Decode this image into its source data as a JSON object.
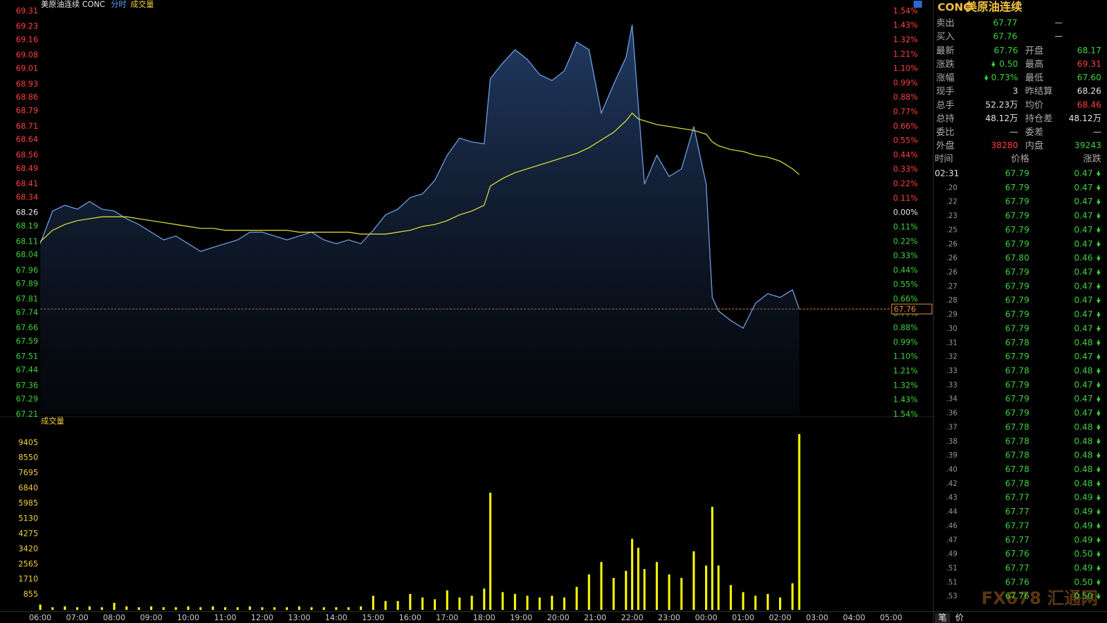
{
  "chart_data": [
    {
      "type": "line",
      "title": "美原油连续 CONC",
      "subtitle": "分时",
      "indicator": "成交量",
      "x": [
        "06:00",
        "06:20",
        "06:40",
        "07:00",
        "07:20",
        "07:40",
        "08:00",
        "08:20",
        "08:40",
        "09:00",
        "09:20",
        "09:40",
        "10:00",
        "10:20",
        "10:40",
        "11:00",
        "11:20",
        "11:40",
        "12:00",
        "12:20",
        "12:40",
        "13:00",
        "13:20",
        "13:40",
        "14:00",
        "14:20",
        "14:40",
        "15:00",
        "15:20",
        "15:40",
        "16:00",
        "16:20",
        "16:40",
        "17:00",
        "17:20",
        "17:40",
        "18:00",
        "18:10",
        "18:30",
        "18:50",
        "19:10",
        "19:30",
        "19:50",
        "20:10",
        "20:30",
        "20:50",
        "21:10",
        "21:30",
        "21:50",
        "22:00",
        "22:10",
        "22:20",
        "22:40",
        "23:00",
        "23:20",
        "23:40",
        "00:00",
        "00:10",
        "00:20",
        "00:40",
        "01:00",
        "01:20",
        "01:40",
        "02:00",
        "02:20",
        "02:31"
      ],
      "series": [
        {
          "color": "#6f9be0",
          "values": [
            68.1,
            68.27,
            68.3,
            68.28,
            68.32,
            68.28,
            68.27,
            68.23,
            68.2,
            68.16,
            68.12,
            68.14,
            68.1,
            68.06,
            68.08,
            68.1,
            68.12,
            68.16,
            68.16,
            68.14,
            68.12,
            68.14,
            68.16,
            68.12,
            68.1,
            68.12,
            68.1,
            68.17,
            68.25,
            68.28,
            68.34,
            68.36,
            68.43,
            68.56,
            68.65,
            68.63,
            68.62,
            68.96,
            69.04,
            69.11,
            69.06,
            68.98,
            68.95,
            69.0,
            69.15,
            69.11,
            68.78,
            68.93,
            69.07,
            69.24,
            68.82,
            68.41,
            68.56,
            68.45,
            68.49,
            68.71,
            68.41,
            67.82,
            67.75,
            67.7,
            67.66,
            67.79,
            67.84,
            67.82,
            67.86,
            67.76
          ]
        },
        {
          "color": "#d6d63a",
          "values": [
            68.11,
            68.17,
            68.2,
            68.22,
            68.23,
            68.24,
            68.24,
            68.24,
            68.23,
            68.22,
            68.21,
            68.2,
            68.19,
            68.18,
            68.18,
            68.17,
            68.17,
            68.17,
            68.17,
            68.17,
            68.17,
            68.16,
            68.16,
            68.16,
            68.16,
            68.16,
            68.15,
            68.15,
            68.15,
            68.16,
            68.17,
            68.19,
            68.2,
            68.22,
            68.25,
            68.27,
            68.3,
            68.4,
            68.44,
            68.47,
            68.49,
            68.51,
            68.53,
            68.55,
            68.57,
            68.6,
            68.64,
            68.68,
            68.74,
            68.78,
            68.75,
            68.74,
            68.72,
            68.71,
            68.7,
            68.69,
            68.67,
            68.63,
            68.61,
            68.59,
            68.58,
            68.56,
            68.55,
            68.53,
            68.49,
            68.46
          ]
        }
      ],
      "ylim": [
        67.21,
        69.31
      ],
      "yticks": [
        69.31,
        69.23,
        69.16,
        69.08,
        69.01,
        68.93,
        68.86,
        68.79,
        68.71,
        68.64,
        68.56,
        68.49,
        68.41,
        68.34,
        68.26,
        68.19,
        68.11,
        68.04,
        67.96,
        67.89,
        67.81,
        67.74,
        67.66,
        67.59,
        67.51,
        67.44,
        67.36,
        67.29,
        67.21
      ],
      "y2lim": [
        -1.54,
        1.54
      ],
      "y2ticks": [
        {
          "value": 1.54,
          "label": "1.54%"
        },
        {
          "value": 1.43,
          "label": "1.43%"
        },
        {
          "value": 1.32,
          "label": "1.32%"
        },
        {
          "value": 1.21,
          "label": "1.21%"
        },
        {
          "value": 1.1,
          "label": "1.10%"
        },
        {
          "value": 0.99,
          "label": "0.99%"
        },
        {
          "value": 0.88,
          "label": "0.88%"
        },
        {
          "value": 0.77,
          "label": "0.77%"
        },
        {
          "value": 0.66,
          "label": "0.66%"
        },
        {
          "value": 0.55,
          "label": "0.55%"
        },
        {
          "value": 0.44,
          "label": "0.44%"
        },
        {
          "value": 0.33,
          "label": "0.33%"
        },
        {
          "value": 0.22,
          "label": "0.22%"
        },
        {
          "value": 0.11,
          "label": "0.11%"
        },
        {
          "value": 0,
          "label": "0.00%"
        },
        {
          "value": -0.11,
          "label": "0.11%"
        },
        {
          "value": -0.22,
          "label": "0.22%"
        },
        {
          "value": -0.33,
          "label": "0.33%"
        },
        {
          "value": -0.44,
          "label": "0.44%"
        },
        {
          "value": -0.55,
          "label": "0.55%"
        },
        {
          "value": -0.66,
          "label": "0.66%"
        },
        {
          "value": -0.77,
          "label": "0.77%"
        },
        {
          "value": -0.88,
          "label": "0.88%"
        },
        {
          "value": -0.99,
          "label": "0.99%"
        },
        {
          "value": -1.1,
          "label": "1.10%"
        },
        {
          "value": -1.21,
          "label": "1.21%"
        },
        {
          "value": -1.32,
          "label": "1.32%"
        },
        {
          "value": -1.43,
          "label": "1.43%"
        },
        {
          "value": -1.54,
          "label": "1.54%"
        }
      ],
      "reference": 68.26,
      "last_value": 67.76
    },
    {
      "type": "bar",
      "title": "成交量",
      "color": "#ffff00",
      "x": [
        "06:00",
        "06:20",
        "06:40",
        "07:00",
        "07:20",
        "07:40",
        "08:00",
        "08:20",
        "08:40",
        "09:00",
        "09:20",
        "09:40",
        "10:00",
        "10:20",
        "10:40",
        "11:00",
        "11:20",
        "11:40",
        "12:00",
        "12:20",
        "12:40",
        "13:00",
        "13:20",
        "13:40",
        "14:00",
        "14:20",
        "14:40",
        "15:00",
        "15:20",
        "15:40",
        "16:00",
        "16:20",
        "16:40",
        "17:00",
        "17:20",
        "17:40",
        "18:00",
        "18:10",
        "18:30",
        "18:50",
        "19:10",
        "19:30",
        "19:50",
        "20:10",
        "20:30",
        "20:50",
        "21:10",
        "21:30",
        "21:50",
        "22:00",
        "22:10",
        "22:20",
        "22:40",
        "23:00",
        "23:20",
        "23:40",
        "00:00",
        "00:10",
        "00:20",
        "00:40",
        "01:00",
        "01:20",
        "01:40",
        "02:00",
        "02:20",
        "02:31"
      ],
      "values": [
        300,
        150,
        200,
        150,
        200,
        150,
        400,
        200,
        150,
        200,
        150,
        150,
        200,
        150,
        200,
        150,
        150,
        200,
        150,
        150,
        150,
        200,
        150,
        150,
        150,
        150,
        200,
        800,
        500,
        500,
        900,
        700,
        600,
        1100,
        700,
        800,
        1200,
        6600,
        1000,
        900,
        800,
        700,
        800,
        700,
        1300,
        2000,
        2700,
        1800,
        2200,
        4000,
        3500,
        2300,
        2700,
        2000,
        1800,
        3300,
        2500,
        5800,
        2500,
        1400,
        1000,
        800,
        900,
        700,
        1500,
        9900
      ],
      "ylim": [
        0,
        10160
      ],
      "yticks": [
        855,
        1710,
        2565,
        3420,
        4275,
        5130,
        5985,
        6840,
        7695,
        8550,
        9405
      ],
      "xticks": [
        "06:00",
        "07:00",
        "08:00",
        "09:00",
        "10:00",
        "11:00",
        "12:00",
        "13:00",
        "14:00",
        "15:00",
        "16:00",
        "17:00",
        "18:00",
        "19:00",
        "20:00",
        "21:00",
        "22:00",
        "23:00",
        "00:00",
        "01:00",
        "02:00",
        "03:00",
        "04:00",
        "05:00"
      ]
    }
  ],
  "quote": {
    "code": "CONC",
    "name": "美原油连续",
    "book": [
      {
        "label": "卖出",
        "price": "67.77",
        "volume": "—"
      },
      {
        "label": "买入",
        "price": "67.76",
        "volume": "—"
      }
    ],
    "rows": [
      {
        "label": "最新",
        "value": "67.76",
        "color": "#3cd23c",
        "label2": "开盘",
        "value2": "68.17",
        "color2": "#3cd23c"
      },
      {
        "label": "涨跌",
        "value": "0.50",
        "color": "#3cd23c",
        "label2": "最高",
        "value2": "69.31",
        "color2": "#ff4040"
      },
      {
        "label": "涨幅",
        "value": "0.73%",
        "color": "#3cd23c",
        "label2": "最低",
        "value2": "67.60",
        "color2": "#3cd23c"
      },
      {
        "label": "现手",
        "value": "3",
        "color": "#e6e6e6",
        "label2": "昨结算",
        "value2": "68.26",
        "color2": "#e6e6e6"
      },
      {
        "label": "总手",
        "value": "52.23万",
        "color": "#e6e6e6",
        "label2": "均价",
        "value2": "68.46",
        "color2": "#ff4040"
      },
      {
        "label": "总持",
        "value": "48.12万",
        "color": "#e6e6e6",
        "label2": "持仓差",
        "value2": "48.12万",
        "color2": "#e6e6e6"
      },
      {
        "label": "委比",
        "value": "—",
        "color": "#e6e6e6",
        "label2": "委差",
        "value2": "—",
        "color2": "#e6e6e6"
      },
      {
        "label": "外盘",
        "value": "38280",
        "color": "#ff4040",
        "label2": "内盘",
        "value2": "39243",
        "color2": "#3cd23c"
      }
    ]
  },
  "ticks": {
    "headers": [
      "时间",
      "价格",
      "涨跌"
    ],
    "rows": [
      [
        "02:31",
        "67.79",
        "0.47"
      ],
      [
        ".20",
        "67.79",
        "0.47"
      ],
      [
        ".22",
        "67.79",
        "0.47"
      ],
      [
        ".23",
        "67.79",
        "0.47"
      ],
      [
        ".25",
        "67.79",
        "0.47"
      ],
      [
        ".26",
        "67.79",
        "0.47"
      ],
      [
        ".26",
        "67.80",
        "0.46"
      ],
      [
        ".26",
        "67.79",
        "0.47"
      ],
      [
        ".27",
        "67.79",
        "0.47"
      ],
      [
        ".28",
        "67.79",
        "0.47"
      ],
      [
        ".29",
        "67.79",
        "0.47"
      ],
      [
        ".30",
        "67.79",
        "0.47"
      ],
      [
        ".31",
        "67.78",
        "0.48"
      ],
      [
        ".32",
        "67.79",
        "0.47"
      ],
      [
        ".33",
        "67.78",
        "0.48"
      ],
      [
        ".33",
        "67.79",
        "0.47"
      ],
      [
        ".34",
        "67.79",
        "0.47"
      ],
      [
        ".36",
        "67.79",
        "0.47"
      ],
      [
        ".37",
        "67.78",
        "0.48"
      ],
      [
        ".38",
        "67.78",
        "0.48"
      ],
      [
        ".39",
        "67.78",
        "0.48"
      ],
      [
        ".40",
        "67.78",
        "0.48"
      ],
      [
        ".42",
        "67.78",
        "0.48"
      ],
      [
        ".43",
        "67.77",
        "0.49"
      ],
      [
        ".44",
        "67.77",
        "0.49"
      ],
      [
        ".46",
        "67.77",
        "0.49"
      ],
      [
        ".47",
        "67.77",
        "0.49"
      ],
      [
        ".49",
        "67.76",
        "0.50"
      ],
      [
        ".51",
        "67.77",
        "0.49"
      ],
      [
        ".51",
        "67.76",
        "0.50"
      ],
      [
        ".53",
        "67.76",
        "0.50"
      ]
    ],
    "tabs": [
      "笔",
      "价"
    ]
  },
  "watermark": "FX678 汇通网"
}
